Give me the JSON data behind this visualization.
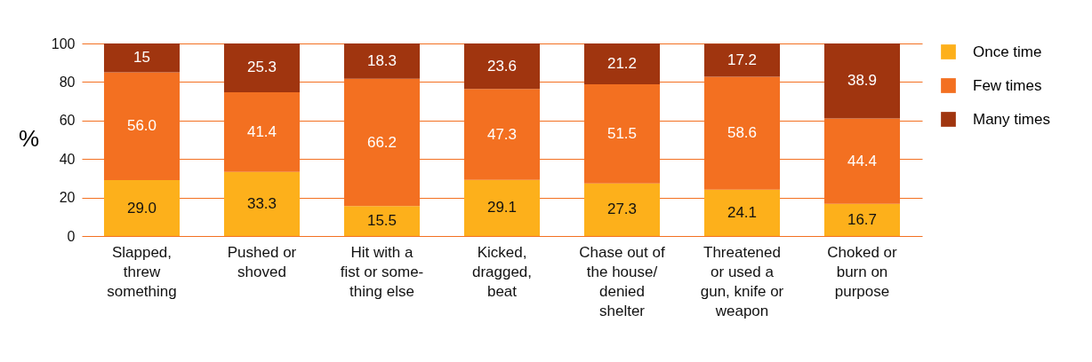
{
  "chart_data": {
    "type": "bar",
    "stacked": true,
    "ylabel": "%",
    "categories": [
      "Slapped,\nthrew\nsomething",
      "Pushed or\nshoved",
      "Hit with a\nfist or some-\nthing else",
      "Kicked,\ndragged,\nbeat",
      "Chase out of\nthe house/\ndenied\nshelter",
      "Threatened\nor used a\ngun, knife or\nweapon",
      "Choked or\nburn on\npurpose"
    ],
    "series": [
      {
        "name": "Once time",
        "color": "#fdb01b",
        "values": [
          29.0,
          33.3,
          15.5,
          29.1,
          27.3,
          24.1,
          16.7
        ],
        "value_labels": [
          "29.0",
          "33.3",
          "15.5",
          "29.1",
          "27.3",
          "24.1",
          "16.7"
        ]
      },
      {
        "name": "Few times",
        "color": "#f37021",
        "values": [
          56.0,
          41.4,
          66.2,
          47.3,
          51.5,
          58.6,
          44.4
        ],
        "value_labels": [
          "56.0",
          "41.4",
          "66.2",
          "47.3",
          "51.5",
          "58.6",
          "44.4"
        ]
      },
      {
        "name": "Many times",
        "color": "#a0350f",
        "values": [
          15,
          25.3,
          18.3,
          23.6,
          21.2,
          17.2,
          38.9
        ],
        "value_labels": [
          "15",
          "25.3",
          "18.3",
          "23.6",
          "21.2",
          "17.2",
          "38.9"
        ]
      }
    ],
    "ylim": [
      0,
      100
    ],
    "yticks": [
      0,
      20,
      40,
      60,
      80,
      100
    ],
    "grid": "y",
    "legend": "top right"
  }
}
